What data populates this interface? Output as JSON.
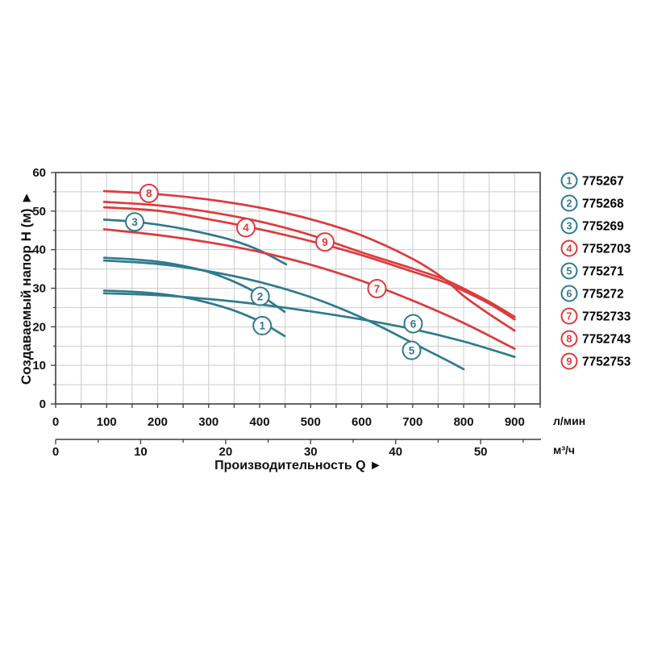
{
  "colors": {
    "teal": "#2F7A8E",
    "red": "#DD3A3C",
    "grid": "#CCCCCC",
    "axis": "#3F3F3F",
    "text": "#111111"
  },
  "chart_data": {
    "type": "line",
    "title": "",
    "xlabel": "Производительность Q ►",
    "ylabel": "Создаваемый напор Н (м) ►",
    "grid": true,
    "legend_position": "right",
    "x_axis_lmin": {
      "unit": "л/мин",
      "range": [
        0,
        950
      ],
      "ticks": [
        0,
        100,
        200,
        300,
        400,
        500,
        600,
        700,
        800,
        900
      ],
      "minor_step": 50
    },
    "x_axis_m3h": {
      "unit": "м³/ч",
      "range": [
        0,
        57
      ],
      "ticks": [
        0,
        10,
        20,
        30,
        40,
        50
      ],
      "minor_step": 5
    },
    "y_axis": {
      "unit": "м",
      "range": [
        0,
        60
      ],
      "ticks": [
        0,
        10,
        20,
        30,
        40,
        50,
        60
      ],
      "minor_step": 5
    },
    "series": [
      {
        "num": "1",
        "code": "775267",
        "color": "#2F7A8E",
        "label_q": 405,
        "label_h": 20.3,
        "points": [
          [
            95,
            29.4
          ],
          [
            150,
            29.1
          ],
          [
            200,
            28.6
          ],
          [
            250,
            27.7
          ],
          [
            300,
            26.2
          ],
          [
            350,
            24.2
          ],
          [
            400,
            21.4
          ],
          [
            449,
            17.6
          ]
        ]
      },
      {
        "num": "2",
        "code": "775268",
        "color": "#2F7A8E",
        "label_q": 401,
        "label_h": 27.9,
        "points": [
          [
            95,
            37.9
          ],
          [
            150,
            37.5
          ],
          [
            200,
            36.9
          ],
          [
            250,
            35.8
          ],
          [
            300,
            34.2
          ],
          [
            350,
            31.7
          ],
          [
            400,
            28.3
          ],
          [
            449,
            23.9
          ]
        ]
      },
      {
        "num": "3",
        "code": "775269",
        "color": "#2F7A8E",
        "label_q": 155,
        "label_h": 47.2,
        "points": [
          [
            95,
            47.8
          ],
          [
            150,
            47.3
          ],
          [
            200,
            46.5
          ],
          [
            250,
            45.4
          ],
          [
            300,
            44.0
          ],
          [
            350,
            42.3
          ],
          [
            400,
            39.8
          ],
          [
            452,
            36.2
          ]
        ]
      },
      {
        "num": "4",
        "code": "7752703",
        "color": "#DD3A3C",
        "label_q": 373,
        "label_h": 45.7,
        "points": [
          [
            95,
            51.0
          ],
          [
            200,
            50.1
          ],
          [
            300,
            47.9
          ],
          [
            400,
            45.3
          ],
          [
            500,
            42.2
          ],
          [
            600,
            38.6
          ],
          [
            700,
            34.3
          ],
          [
            760,
            31.7
          ],
          [
            800,
            29.3
          ],
          [
            850,
            26.0
          ],
          [
            900,
            21.9
          ]
        ]
      },
      {
        "num": "5",
        "code": "775271",
        "color": "#2F7A8E",
        "label_q": 698,
        "label_h": 13.9,
        "points": [
          [
            95,
            37.2
          ],
          [
            200,
            36.3
          ],
          [
            300,
            34.4
          ],
          [
            400,
            31.6
          ],
          [
            500,
            27.7
          ],
          [
            600,
            22.4
          ],
          [
            700,
            15.8
          ],
          [
            760,
            11.8
          ],
          [
            800,
            9.0
          ]
        ]
      },
      {
        "num": "6",
        "code": "775272",
        "color": "#2F7A8E",
        "label_q": 701,
        "label_h": 20.8,
        "points": [
          [
            95,
            28.7
          ],
          [
            200,
            28.2
          ],
          [
            300,
            27.2
          ],
          [
            400,
            25.8
          ],
          [
            500,
            24.0
          ],
          [
            600,
            21.9
          ],
          [
            700,
            19.4
          ],
          [
            800,
            16.2
          ],
          [
            900,
            12.2
          ]
        ]
      },
      {
        "num": "7",
        "code": "7752733",
        "color": "#DD3A3C",
        "label_q": 630,
        "label_h": 29.9,
        "points": [
          [
            95,
            45.3
          ],
          [
            200,
            43.8
          ],
          [
            300,
            41.9
          ],
          [
            400,
            39.4
          ],
          [
            500,
            36.1
          ],
          [
            600,
            31.9
          ],
          [
            700,
            26.8
          ],
          [
            800,
            21.0
          ],
          [
            900,
            14.3
          ]
        ]
      },
      {
        "num": "8",
        "code": "7752743",
        "color": "#DD3A3C",
        "label_q": 183,
        "label_h": 54.6,
        "points": [
          [
            95,
            55.2
          ],
          [
            200,
            54.4
          ],
          [
            300,
            53.0
          ],
          [
            400,
            50.9
          ],
          [
            500,
            47.9
          ],
          [
            600,
            43.7
          ],
          [
            700,
            37.6
          ],
          [
            760,
            32.6
          ],
          [
            800,
            28.0
          ],
          [
            850,
            23.3
          ],
          [
            900,
            19.0
          ]
        ]
      },
      {
        "num": "9",
        "code": "7752753",
        "color": "#DD3A3C",
        "label_q": 528,
        "label_h": 42.0,
        "points": [
          [
            95,
            52.4
          ],
          [
            200,
            51.5
          ],
          [
            300,
            49.8
          ],
          [
            400,
            47.3
          ],
          [
            500,
            43.8
          ],
          [
            600,
            39.3
          ],
          [
            700,
            35.1
          ],
          [
            760,
            32.4
          ],
          [
            800,
            29.9
          ],
          [
            850,
            26.5
          ],
          [
            900,
            22.6
          ]
        ]
      }
    ]
  }
}
